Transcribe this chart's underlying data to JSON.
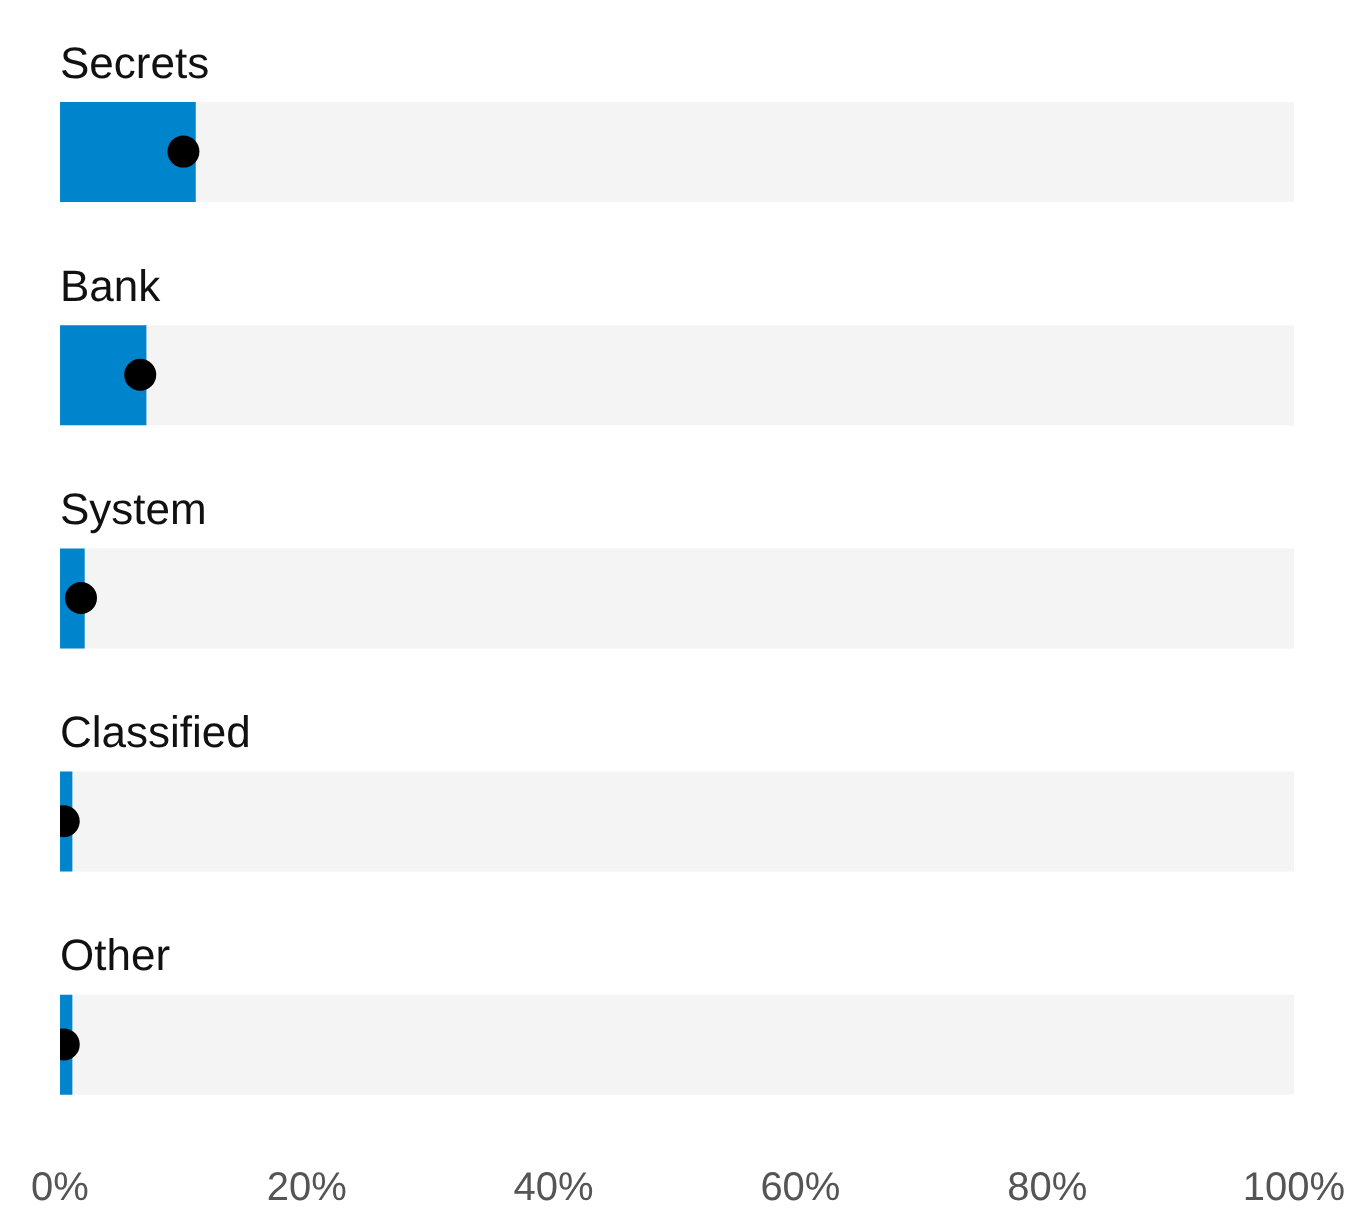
{
  "chart_data": {
    "type": "bar",
    "orientation": "horizontal",
    "categories": [
      "Secrets",
      "Bank",
      "System",
      "Classified",
      "Other"
    ],
    "series": [
      {
        "color": "#0085cc",
        "values": [
          11,
          7,
          2,
          1,
          1
        ]
      },
      {
        "type": "scatter",
        "color": "#000000",
        "values": [
          10,
          6.5,
          1.7,
          0.3,
          0.3
        ]
      }
    ],
    "xlim": [
      0,
      100
    ],
    "xticks": [
      {
        "value": 0,
        "label": "0%"
      },
      {
        "value": 20,
        "label": "20%"
      },
      {
        "value": 40,
        "label": "40%"
      },
      {
        "value": 60,
        "label": "60%"
      },
      {
        "value": 80,
        "label": "80%"
      },
      {
        "value": 100,
        "label": "100%"
      }
    ],
    "legend": false
  }
}
